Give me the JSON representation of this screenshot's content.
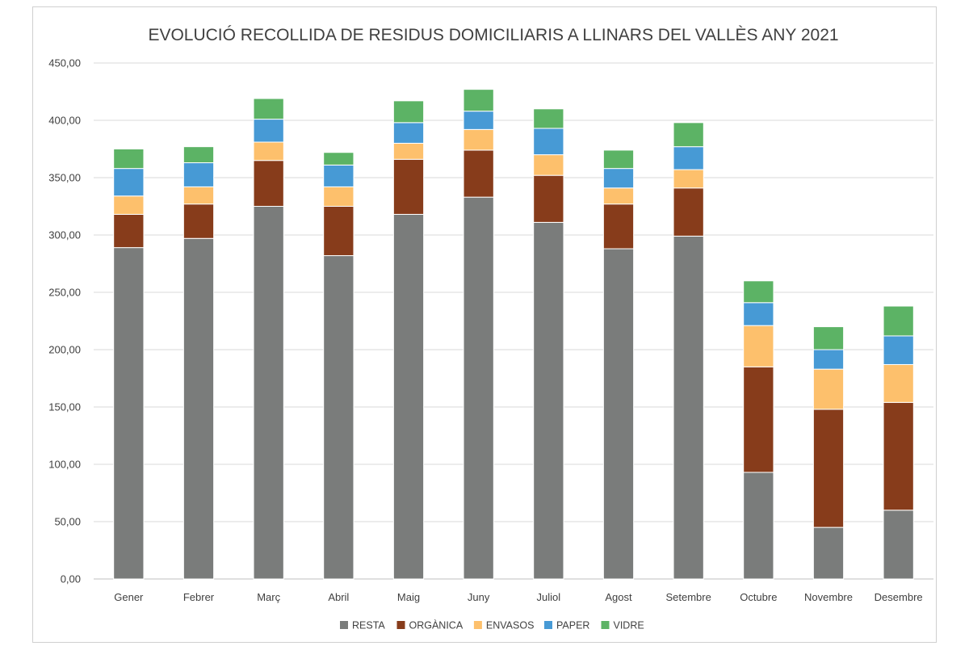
{
  "chart_data": {
    "type": "bar",
    "stacked": true,
    "title": "EVOLUCIÓ RECOLLIDA DE RESIDUS DOMICILIARIS A LLINARS DEL VALLÈS ANY 2021",
    "xlabel": "",
    "ylabel": "",
    "ylim": [
      0,
      450
    ],
    "ytick_step": 50,
    "ytick_labels": [
      "0,00",
      "50,00",
      "100,00",
      "150,00",
      "200,00",
      "250,00",
      "300,00",
      "350,00",
      "400,00",
      "450,00"
    ],
    "grid": true,
    "legend_position": "bottom",
    "categories": [
      "Gener",
      "Febrer",
      "Març",
      "Abril",
      "Maig",
      "Juny",
      "Juliol",
      "Agost",
      "Setembre",
      "Octubre",
      "Novembre",
      "Desembre"
    ],
    "series": [
      {
        "name": "RESTA",
        "color": "#7a7c7b",
        "values": [
          289,
          297,
          325,
          282,
          318,
          333,
          311,
          288,
          299,
          93,
          45,
          60
        ]
      },
      {
        "name": "ORGÀNICA",
        "color": "#873c1b",
        "values": [
          29,
          30,
          40,
          43,
          48,
          41,
          41,
          39,
          42,
          92,
          103,
          94
        ]
      },
      {
        "name": "ENVASOS",
        "color": "#fdc06c",
        "values": [
          16,
          15,
          16,
          17,
          14,
          18,
          18,
          14,
          16,
          36,
          35,
          33
        ]
      },
      {
        "name": "PAPER",
        "color": "#479ad5",
        "values": [
          24,
          21,
          20,
          19,
          18,
          16,
          23,
          17,
          20,
          20,
          17,
          25
        ]
      },
      {
        "name": "VIDRE",
        "color": "#5cb365",
        "values": [
          17,
          14,
          18,
          11,
          19,
          19,
          17,
          16,
          21,
          19,
          20,
          26
        ]
      }
    ]
  }
}
